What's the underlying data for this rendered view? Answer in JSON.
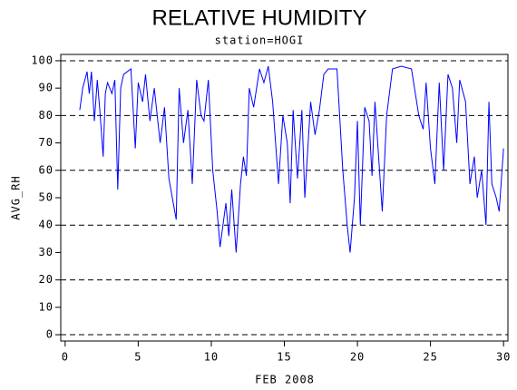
{
  "chart_data": {
    "type": "line",
    "title": "RELATIVE HUMIDITY",
    "subtitle": "station=HOGI",
    "y_label": "AVG_RH",
    "x_label": "FEB 2008",
    "xlim": [
      -0.3,
      30.3
    ],
    "xticks": [
      0,
      5,
      10,
      15,
      20,
      25,
      30
    ],
    "ylim": [
      -2.3,
      102.3
    ],
    "yticks": [
      0,
      10,
      20,
      30,
      40,
      50,
      60,
      70,
      80,
      90,
      100
    ],
    "ygrid": [
      0,
      20,
      40,
      60,
      80,
      100
    ],
    "grid_style": "dashed",
    "series": [
      {
        "color": "#0000ff",
        "x": [
          1.0,
          1.2,
          1.5,
          1.65,
          1.8,
          2.0,
          2.2,
          2.4,
          2.6,
          2.75,
          2.9,
          3.2,
          3.4,
          3.6,
          3.8,
          4.0,
          4.5,
          4.8,
          5.0,
          5.3,
          5.5,
          5.8,
          6.1,
          6.5,
          6.8,
          7.1,
          7.5,
          7.6,
          7.8,
          8.1,
          8.4,
          8.7,
          9.0,
          9.3,
          9.5,
          9.8,
          10.1,
          10.4,
          10.6,
          11.0,
          11.2,
          11.4,
          11.7,
          12.0,
          12.2,
          12.4,
          12.6,
          12.9,
          13.3,
          13.6,
          13.9,
          14.2,
          14.6,
          14.9,
          15.2,
          15.4,
          15.6,
          15.9,
          16.2,
          16.4,
          16.8,
          17.1,
          17.4,
          17.7,
          18.0,
          18.6,
          19.0,
          19.3,
          19.5,
          19.8,
          20.0,
          20.2,
          20.5,
          20.8,
          21.0,
          21.2,
          21.7,
          22.0,
          22.4,
          23.0,
          23.7,
          24.2,
          24.5,
          24.7,
          25.0,
          25.3,
          25.6,
          25.9,
          26.2,
          26.5,
          26.8,
          27.0,
          27.4,
          27.7,
          28.0,
          28.2,
          28.5,
          28.8,
          29.0,
          29.2,
          29.5,
          29.7,
          30.0
        ],
        "values": [
          82,
          90,
          96,
          88,
          96,
          78,
          93,
          80,
          65,
          88,
          92,
          88,
          93,
          53,
          90,
          95,
          97,
          68,
          92,
          85,
          95,
          78,
          90,
          70,
          83,
          57,
          45,
          42,
          90,
          70,
          82,
          55,
          93,
          80,
          78,
          93,
          60,
          45,
          32,
          48,
          36,
          53,
          30,
          55,
          65,
          58,
          90,
          83,
          97,
          92,
          98,
          85,
          55,
          80,
          70,
          48,
          82,
          57,
          82,
          50,
          85,
          73,
          82,
          95,
          97,
          97,
          60,
          40,
          30,
          50,
          78,
          40,
          83,
          78,
          58,
          85,
          45,
          80,
          97,
          98,
          97,
          80,
          75,
          92,
          68,
          55,
          92,
          60,
          95,
          90,
          70,
          93,
          85,
          55,
          65,
          50,
          60,
          40,
          85,
          55,
          50,
          45,
          68
        ]
      }
    ]
  }
}
